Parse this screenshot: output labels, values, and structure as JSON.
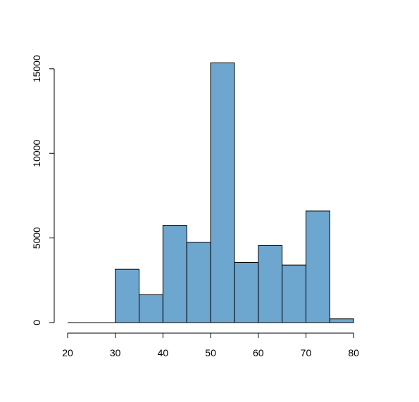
{
  "chart_data": {
    "type": "bar",
    "title": "",
    "xlabel": "",
    "ylabel": "",
    "bin_edges": [
      20,
      25,
      30,
      35,
      40,
      45,
      50,
      55,
      60,
      65,
      70,
      75,
      80
    ],
    "values": [
      0,
      0,
      3150,
      1650,
      5750,
      4750,
      15350,
      3550,
      4550,
      3400,
      6600,
      220
    ],
    "xlim": [
      20,
      85
    ],
    "ylim": [
      0,
      15700
    ],
    "x_ticks": [
      20,
      30,
      40,
      50,
      60,
      70,
      80
    ],
    "y_ticks": [
      0,
      5000,
      10000,
      15000
    ],
    "x_tick_labels": [
      "20",
      "30",
      "40",
      "50",
      "60",
      "70",
      "80"
    ],
    "y_tick_labels": [
      "0",
      "5000",
      "10000",
      "15000"
    ],
    "grid": false,
    "legend": "none",
    "colors": {
      "bar_fill": "#6da7d0",
      "bar_edge": "#000000",
      "axis": "#000000",
      "background": "#ffffff"
    }
  }
}
